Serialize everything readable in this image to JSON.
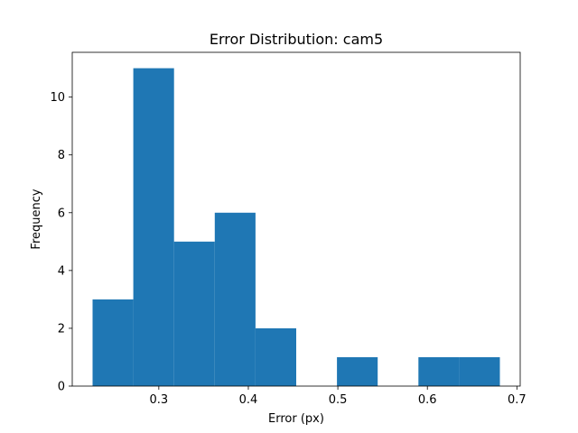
{
  "chart_data": {
    "type": "bar",
    "title": "Error Distribution: cam5",
    "xlabel": "Error (px)",
    "ylabel": "Frequency",
    "bin_edges": [
      0.226,
      0.2715,
      0.317,
      0.3625,
      0.408,
      0.4535,
      0.499,
      0.5445,
      0.59,
      0.6355,
      0.681
    ],
    "values": [
      3,
      11,
      5,
      6,
      2,
      0,
      1,
      0,
      1,
      1
    ],
    "xlim": [
      0.2033,
      0.7037
    ],
    "ylim": [
      0,
      11.55
    ],
    "xticks": [
      0.3,
      0.4,
      0.5,
      0.6,
      0.7
    ],
    "xtick_labels": [
      "0.3",
      "0.4",
      "0.5",
      "0.6",
      "0.7"
    ],
    "yticks": [
      0,
      2,
      4,
      6,
      8,
      10
    ],
    "ytick_labels": [
      "0",
      "2",
      "4",
      "6",
      "8",
      "10"
    ],
    "bar_color": "#1f77b4",
    "grid": false,
    "legend": "none"
  }
}
